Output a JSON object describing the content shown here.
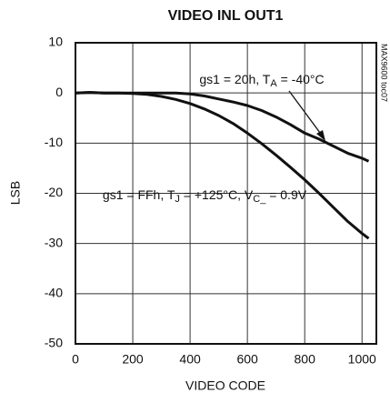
{
  "chart_data": {
    "type": "line",
    "title": "VIDEO INL OUT1",
    "xlabel": "VIDEO CODE",
    "ylabel": "LSB",
    "note": "MAX9600 toc07",
    "x": [
      0,
      50,
      100,
      150,
      200,
      250,
      300,
      350,
      400,
      450,
      500,
      550,
      600,
      650,
      700,
      750,
      800,
      850,
      900,
      950,
      1000,
      1023
    ],
    "series": [
      {
        "color": "#111111",
        "values": [
          0,
          0.1,
          0,
          0,
          0,
          0,
          0,
          0,
          -0.2,
          -0.6,
          -1.2,
          -1.8,
          -2.5,
          -3.5,
          -4.8,
          -6.3,
          -8,
          -9.2,
          -10.6,
          -12,
          -13,
          -13.6
        ]
      },
      {
        "color": "#111111",
        "values": [
          0,
          0.1,
          0,
          0,
          -0.1,
          -0.3,
          -0.7,
          -1.3,
          -2.1,
          -3.2,
          -4.5,
          -6.1,
          -8,
          -10.1,
          -12.4,
          -14.8,
          -17.3,
          -20,
          -22.8,
          -25.6,
          -28,
          -29
        ]
      }
    ],
    "annotations": [
      {
        "parts": [
          "gs1 = 20h, T",
          "A",
          " = -40°C"
        ]
      },
      {
        "parts": [
          "gs1 = FFh, T",
          "J",
          " = +125°C, V",
          "C_",
          " = 0.9V"
        ]
      }
    ],
    "xlim": [
      0,
      1050
    ],
    "xticks": [
      0,
      200,
      400,
      600,
      800,
      1000
    ],
    "ylim": [
      -50,
      10
    ],
    "yticks": [
      10,
      0,
      -10,
      -20,
      -30,
      -40,
      -50
    ],
    "grid": true
  }
}
